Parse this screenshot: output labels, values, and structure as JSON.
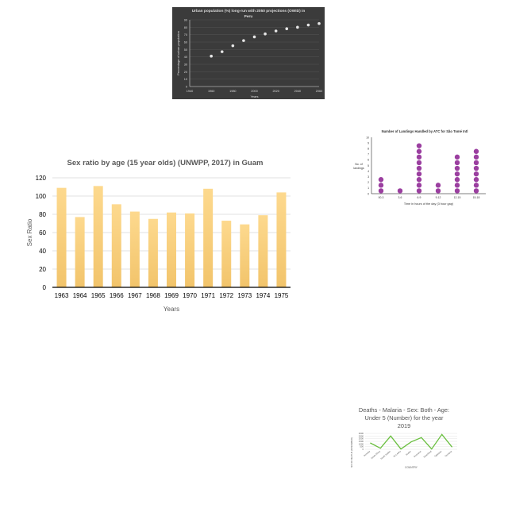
{
  "charts": [
    {
      "id": "urban",
      "type": "scatter",
      "title_lines": [
        "Urban population (%) long-run with 2050 projections (OWID) in",
        "Peru"
      ],
      "xlabel": "Years",
      "ylabel": "Percentage of urban population",
      "x_ticks": [
        "1940",
        "1960",
        "1980",
        "2000",
        "2020",
        "2040",
        "2060"
      ],
      "y_ticks": [
        "0",
        "10",
        "20",
        "30",
        "40",
        "50",
        "60",
        "70",
        "80",
        "90"
      ],
      "xlim": [
        1940,
        2060
      ],
      "ylim": [
        0,
        90
      ],
      "colors": {
        "background": "#3b3b3b",
        "text": "#dddddd",
        "grid": "#555555",
        "point": "#e6e6e6"
      },
      "points": [
        {
          "x": 1960,
          "y": 41
        },
        {
          "x": 1970,
          "y": 47
        },
        {
          "x": 1980,
          "y": 55
        },
        {
          "x": 1990,
          "y": 62
        },
        {
          "x": 2000,
          "y": 67
        },
        {
          "x": 2010,
          "y": 71
        },
        {
          "x": 2020,
          "y": 75
        },
        {
          "x": 2030,
          "y": 78
        },
        {
          "x": 2040,
          "y": 80
        },
        {
          "x": 2050,
          "y": 83
        },
        {
          "x": 2060,
          "y": 85
        }
      ]
    },
    {
      "id": "sexratio",
      "type": "bar",
      "title": "Sex ratio by age (15 year olds) (UNWPP, 2017) in Guam",
      "xlabel": "Years",
      "ylabel": "Sex Ratio",
      "ylim": [
        0,
        120
      ],
      "y_ticks": [
        "0",
        "20",
        "40",
        "60",
        "80",
        "100",
        "120"
      ],
      "categories": [
        "1963",
        "1964",
        "1965",
        "1966",
        "1967",
        "1968",
        "1969",
        "1970",
        "1971",
        "1972",
        "1973",
        "1974",
        "1975"
      ],
      "values": [
        109,
        77,
        111,
        91,
        83,
        75,
        82,
        81,
        108,
        73,
        69,
        79,
        104
      ],
      "colors": {
        "bar_top": "#fdd98e",
        "bar_bottom": "#f2c46b",
        "grid": "#d9d9d9",
        "axis": "#000000",
        "text": "#595959"
      }
    },
    {
      "id": "landings",
      "type": "dot",
      "title": "Number of Landings Handled by ATC for São Tomé Intl",
      "xlabel": "Time in hours of the day (3 hour gap)",
      "ylabel_lines": [
        "No. of",
        "landings"
      ],
      "ylim": [
        0,
        10
      ],
      "y_ticks": [
        "0",
        "1",
        "2",
        "3",
        "4",
        "5",
        "6",
        "7",
        "8",
        "9",
        "10"
      ],
      "categories": [
        "00-3",
        "3-6",
        "6-9",
        "9-12",
        "12-15",
        "15-18"
      ],
      "values": [
        3,
        1,
        9,
        2,
        7,
        8
      ],
      "colors": {
        "dot": "#9b3fa0",
        "axis": "#000000",
        "text": "#333333"
      }
    },
    {
      "id": "malaria",
      "type": "line",
      "title_lines": [
        "Deaths - Malaria - Sex: Both - Age:",
        "Under 5 (Number) for the year",
        "2019"
      ],
      "xlabel": "COUNTRY",
      "ylabel": "NO OF DEATHS (IN NUMBER)",
      "ylim": [
        0,
        3000
      ],
      "y_ticks": [
        "0",
        "500",
        "1000",
        "1500",
        "2000",
        "2500",
        "3000"
      ],
      "categories": [
        "Somalia",
        "South Africa",
        "South Sudan",
        "Sri Lanka",
        "Sudan",
        "Suriname",
        "Swaziland",
        "Tajikistan",
        "Tanzania"
      ],
      "values": [
        1200,
        200,
        2500,
        50,
        1400,
        2200,
        40,
        2800,
        400
      ],
      "colors": {
        "line": "#6abf40",
        "grid": "#dddddd",
        "text": "#555555"
      }
    }
  ]
}
